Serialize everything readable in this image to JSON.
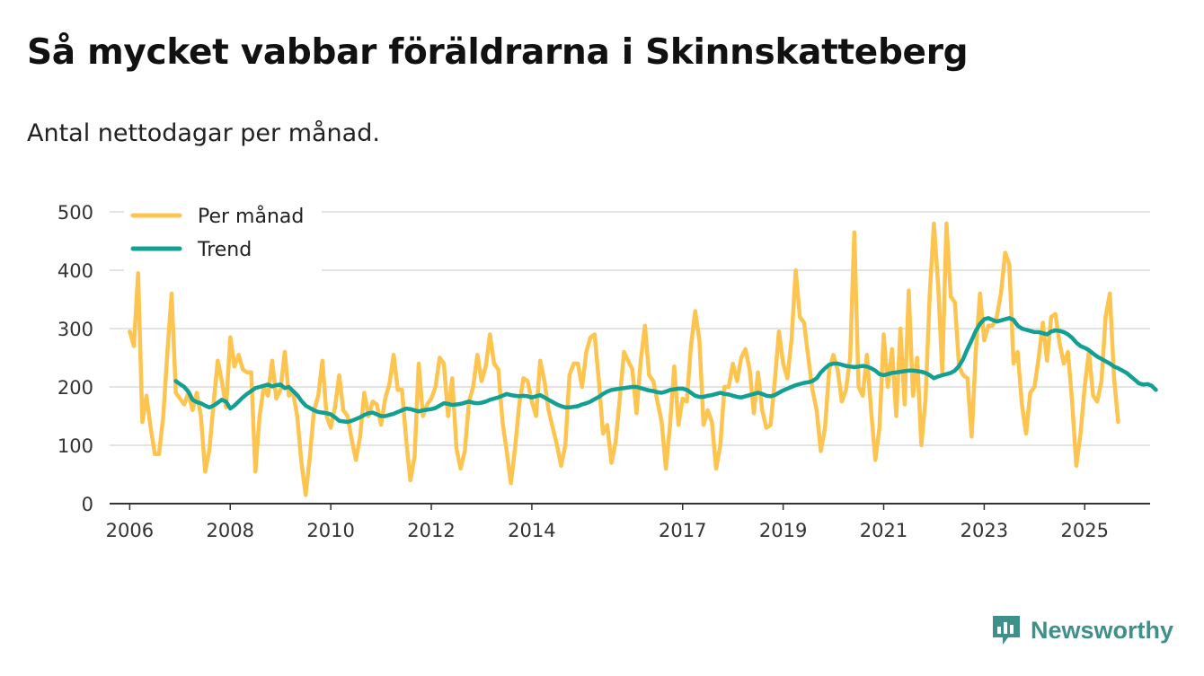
{
  "header": {
    "title": "Så mycket vabbar föräldrarna i Skinnskatteberg",
    "subtitle": "Antal nettodagar per månad."
  },
  "brand": {
    "name": "Newsworthy",
    "icon": "newsworthy-logo-icon",
    "color": "#3f8f8a"
  },
  "chart_data": {
    "type": "line",
    "title": "Så mycket vabbar föräldrarna i Skinnskatteberg",
    "subtitle": "Antal nettodagar per månad.",
    "xlabel": "",
    "ylabel": "",
    "ylim": [
      0,
      500
    ],
    "xlim": [
      2005.6,
      2026.3
    ],
    "grid": true,
    "legend_position": "top-left",
    "y_ticks": [
      0,
      100,
      200,
      300,
      400,
      500
    ],
    "x_ticks": [
      {
        "value": 2006,
        "label": "2006"
      },
      {
        "value": 2008,
        "label": "2008"
      },
      {
        "value": 2010,
        "label": "2010"
      },
      {
        "value": 2012,
        "label": "2012"
      },
      {
        "value": 2014,
        "label": "2014"
      },
      {
        "value": 2017,
        "label": "2017"
      },
      {
        "value": 2019,
        "label": "2019"
      },
      {
        "value": 2021,
        "label": "2021"
      },
      {
        "value": 2023,
        "label": "2023"
      },
      {
        "value": 2025,
        "label": "2025"
      }
    ],
    "series": [
      {
        "name": "Per månad",
        "color": "#fdc44f",
        "start": 2006.0,
        "step": 0.08333,
        "values": [
          295,
          270,
          395,
          140,
          185,
          130,
          85,
          85,
          150,
          260,
          360,
          190,
          180,
          170,
          190,
          160,
          190,
          150,
          55,
          90,
          170,
          245,
          210,
          165,
          285,
          235,
          255,
          230,
          225,
          225,
          55,
          150,
          200,
          185,
          245,
          180,
          195,
          260,
          185,
          190,
          150,
          70,
          15,
          80,
          160,
          185,
          245,
          150,
          130,
          165,
          220,
          160,
          150,
          110,
          75,
          115,
          190,
          150,
          175,
          170,
          135,
          180,
          205,
          255,
          195,
          195,
          110,
          40,
          80,
          240,
          150,
          170,
          180,
          200,
          250,
          240,
          150,
          215,
          95,
          60,
          90,
          175,
          200,
          255,
          210,
          235,
          290,
          240,
          230,
          140,
          90,
          35,
          95,
          170,
          215,
          210,
          175,
          150,
          245,
          210,
          160,
          130,
          100,
          65,
          100,
          220,
          240,
          240,
          200,
          260,
          285,
          290,
          210,
          120,
          135,
          70,
          105,
          180,
          260,
          245,
          230,
          155,
          245,
          305,
          220,
          210,
          175,
          140,
          60,
          135,
          235,
          135,
          180,
          175,
          270,
          330,
          280,
          135,
          160,
          140,
          60,
          100,
          200,
          200,
          240,
          210,
          250,
          265,
          230,
          155,
          225,
          160,
          130,
          135,
          210,
          295,
          240,
          215,
          280,
          400,
          320,
          310,
          250,
          195,
          160,
          90,
          130,
          230,
          255,
          230,
          175,
          195,
          250,
          465,
          200,
          185,
          255,
          160,
          75,
          130,
          290,
          200,
          265,
          150,
          300,
          170,
          365,
          185,
          250,
          100,
          180,
          360,
          480,
          375,
          225,
          480,
          355,
          345,
          235,
          220,
          215,
          115,
          260,
          360,
          280,
          305,
          305,
          320,
          360,
          430,
          410,
          240,
          260,
          170,
          120,
          190,
          200,
          250,
          310,
          245,
          320,
          325,
          275,
          240,
          260,
          175,
          65,
          120,
          200,
          260,
          185,
          175,
          210,
          320,
          360,
          215,
          140
        ]
      },
      {
        "name": "Trend",
        "color": "#13a093",
        "start": 2006.9167,
        "step": 0.08333,
        "values": [
          210,
          205,
          200,
          192,
          178,
          174,
          172,
          168,
          165,
          168,
          173,
          178,
          175,
          163,
          168,
          175,
          182,
          188,
          193,
          198,
          200,
          202,
          204,
          201,
          203,
          204,
          198,
          200,
          193,
          186,
          176,
          168,
          164,
          160,
          157,
          156,
          155,
          153,
          148,
          142,
          141,
          140,
          142,
          145,
          148,
          152,
          155,
          156,
          153,
          150,
          150,
          152,
          154,
          157,
          160,
          163,
          162,
          160,
          158,
          160,
          161,
          162,
          164,
          168,
          172,
          171,
          169,
          170,
          171,
          173,
          175,
          173,
          172,
          173,
          175,
          178,
          180,
          182,
          185,
          188,
          186,
          185,
          184,
          185,
          184,
          182,
          184,
          186,
          182,
          178,
          174,
          170,
          167,
          165,
          165,
          166,
          167,
          170,
          172,
          175,
          179,
          183,
          188,
          192,
          195,
          196,
          197,
          198,
          199,
          200,
          200,
          198,
          196,
          194,
          193,
          191,
          190,
          192,
          195,
          196,
          197,
          197,
          195,
          190,
          185,
          183,
          183,
          185,
          186,
          188,
          190,
          188,
          187,
          185,
          183,
          182,
          184,
          186,
          188,
          190,
          188,
          185,
          184,
          186,
          190,
          194,
          197,
          200,
          203,
          205,
          207,
          208,
          210,
          215,
          225,
          232,
          238,
          240,
          240,
          238,
          236,
          235,
          234,
          235,
          236,
          235,
          232,
          228,
          222,
          220,
          222,
          224,
          225,
          226,
          227,
          228,
          228,
          227,
          226,
          224,
          220,
          215,
          218,
          220,
          222,
          224,
          228,
          236,
          248,
          265,
          280,
          296,
          308,
          316,
          318,
          315,
          312,
          314,
          316,
          318,
          315,
          305,
          300,
          298,
          296,
          294,
          294,
          292,
          290,
          295,
          297,
          296,
          294,
          290,
          284,
          276,
          270,
          267,
          263,
          257,
          252,
          248,
          244,
          240,
          235,
          232,
          228,
          224,
          218,
          212,
          206,
          204,
          205,
          202,
          195
        ]
      }
    ]
  }
}
